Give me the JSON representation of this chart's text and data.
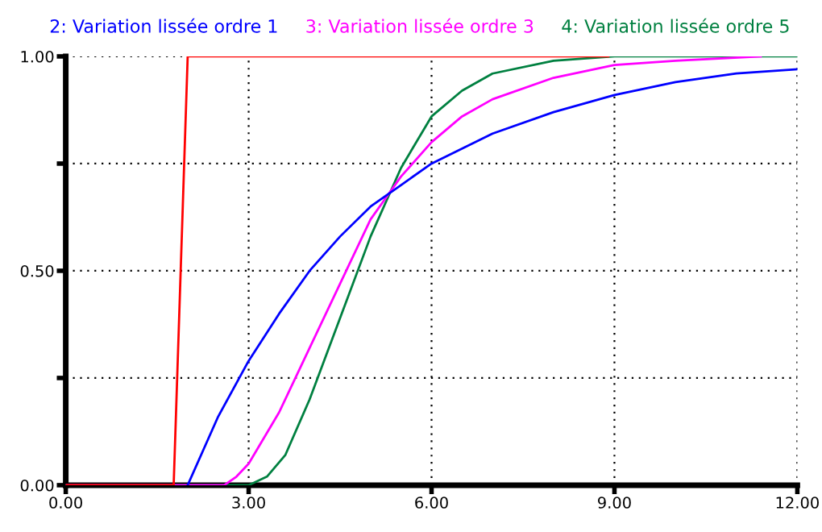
{
  "chart_data": {
    "type": "line",
    "xlim": [
      0,
      12
    ],
    "ylim": [
      0,
      1
    ],
    "xticks": [
      {
        "value": 0,
        "label": "0.00"
      },
      {
        "value": 3,
        "label": "3.00"
      },
      {
        "value": 6,
        "label": "6.00"
      },
      {
        "value": 9,
        "label": "9.00"
      },
      {
        "value": 12,
        "label": "12.00"
      }
    ],
    "yticks": [
      {
        "value": 0,
        "label": "0.00"
      },
      {
        "value": 0.25,
        "label": null
      },
      {
        "value": 0.5,
        "label": "0.50"
      },
      {
        "value": 0.75,
        "label": null
      },
      {
        "value": 1,
        "label": "1.00"
      }
    ],
    "grid": true,
    "legend": "top",
    "marker": "none",
    "line_style": "solid",
    "series": [
      {
        "color": "#ff0000",
        "x": [
          0,
          1.77,
          2.0,
          8.9
        ],
        "values": [
          0,
          0,
          1,
          1
        ]
      },
      {
        "name": "2: Variation lissée ordre 1",
        "color": "#0000ff",
        "x": [
          2,
          2.5,
          3,
          3.5,
          4,
          4.5,
          5,
          5.5,
          6,
          7,
          8,
          9,
          10,
          11,
          12
        ],
        "values": [
          0,
          0.16,
          0.29,
          0.4,
          0.5,
          0.58,
          0.65,
          0.7,
          0.75,
          0.82,
          0.87,
          0.91,
          0.94,
          0.96,
          0.97
        ]
      },
      {
        "name": "3: Variation lissée ordre 3",
        "color": "#ff00ff",
        "x": [
          0,
          2.6,
          2.8,
          3,
          3.5,
          4,
          4.5,
          5,
          5.5,
          6,
          6.5,
          7,
          8,
          9,
          10,
          11.4
        ],
        "values": [
          0,
          0,
          0.02,
          0.05,
          0.17,
          0.32,
          0.47,
          0.62,
          0.72,
          0.8,
          0.86,
          0.9,
          0.95,
          0.98,
          0.99,
          1.0
        ]
      },
      {
        "name": "4: Variation lissée ordre 5",
        "color": "#008040",
        "x": [
          0,
          3.0,
          3.3,
          3.6,
          4,
          4.5,
          5,
          5.5,
          6,
          6.5,
          7,
          8,
          9,
          12
        ],
        "values": [
          0,
          0,
          0.02,
          0.07,
          0.2,
          0.39,
          0.58,
          0.74,
          0.86,
          0.92,
          0.96,
          0.99,
          1.0,
          1.0
        ]
      }
    ]
  }
}
